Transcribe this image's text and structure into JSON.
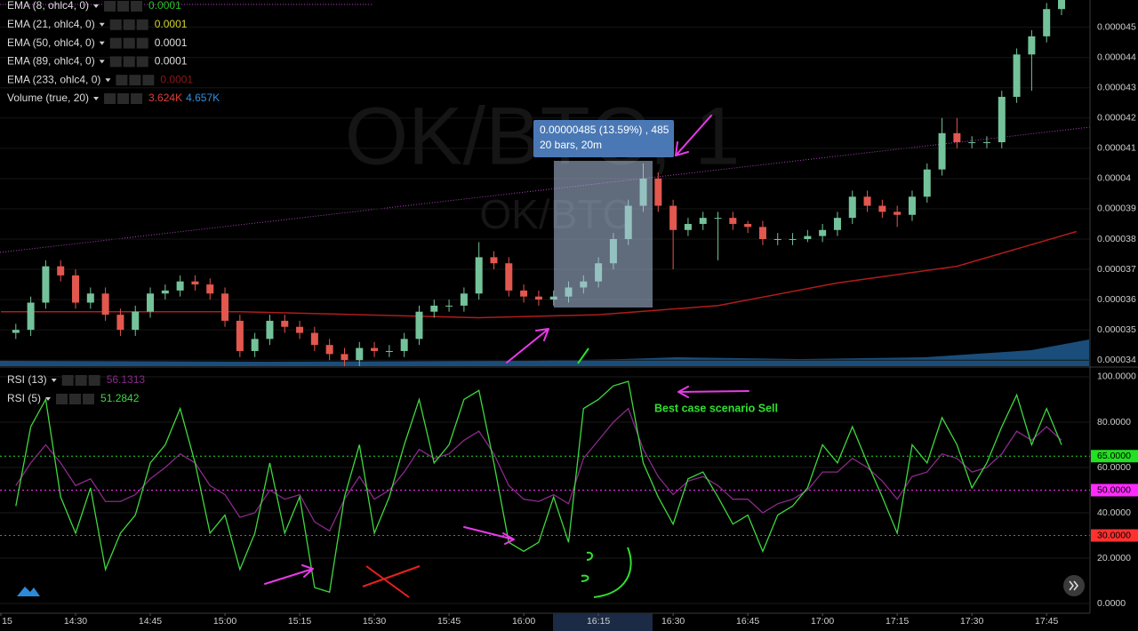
{
  "chart_data": [
    {
      "type": "candlestick",
      "watermark": "OK/BTC, 1",
      "watermark_sub": "OK/BTC",
      "measure_lines": [
        "0.00000485 (13.59%) , 485",
        "20 bars, 20m"
      ],
      "indicator_legend": [
        {
          "label": "EMA (8, ohlc4, 0)",
          "readouts": [
            {
              "text": "0.0001",
              "color": "#22c322"
            }
          ]
        },
        {
          "label": "EMA (21, ohlc4, 0)",
          "readouts": [
            {
              "text": "0.0001",
              "color": "#d6d62a"
            }
          ]
        },
        {
          "label": "EMA (50, ohlc4, 0)",
          "readouts": [
            {
              "text": "0.0001",
              "color": "#dddddd"
            }
          ]
        },
        {
          "label": "EMA (89, ohlc4, 0)",
          "readouts": [
            {
              "text": "0.0001",
              "color": "#dddddd"
            }
          ]
        },
        {
          "label": "EMA (233, ohlc4, 0)",
          "readouts": [
            {
              "text": "0.0001",
              "color": "#8a1a1a"
            }
          ]
        },
        {
          "label": "Volume (true, 20)",
          "readouts": [
            {
              "text": "3.624K",
              "color": "#e0403a"
            },
            {
              "text": "4.657K",
              "color": "#2f8fe0"
            }
          ]
        }
      ],
      "xlim": [
        0,
        218
      ],
      "ylim": [
        3.38e-05,
        4.59e-05
      ],
      "yticks": [
        3.4e-05,
        3.5e-05,
        3.6e-05,
        3.7e-05,
        3.8e-05,
        3.9e-05,
        4e-05,
        4.1e-05,
        4.2e-05,
        4.3e-05,
        4.4e-05,
        4.5e-05
      ],
      "grid": true,
      "up_color": "#74c29a",
      "down_color": "#e2574e",
      "x": [
        3,
        6,
        9,
        12,
        15,
        18,
        21,
        24,
        27,
        30,
        33,
        36,
        39,
        42,
        45,
        48,
        51,
        54,
        57,
        60,
        63,
        66,
        69,
        72,
        75,
        78,
        81,
        84,
        87,
        90,
        93,
        96,
        99,
        102,
        105,
        108,
        111,
        114,
        117,
        120,
        123,
        126,
        129,
        132,
        135,
        138,
        141,
        144,
        147,
        150,
        153,
        156,
        159,
        162,
        165,
        168,
        171,
        174,
        177,
        180,
        183,
        186,
        189,
        192,
        195,
        198,
        201,
        204,
        207,
        210,
        213
      ],
      "open": [
        3.49e-05,
        3.5e-05,
        3.59e-05,
        3.71e-05,
        3.68e-05,
        3.59e-05,
        3.62e-05,
        3.55e-05,
        3.5e-05,
        3.56e-05,
        3.62e-05,
        3.63e-05,
        3.66e-05,
        3.65e-05,
        3.62e-05,
        3.53e-05,
        3.43e-05,
        3.47e-05,
        3.53e-05,
        3.51e-05,
        3.49e-05,
        3.45e-05,
        3.42e-05,
        3.4e-05,
        3.44e-05,
        3.43e-05,
        3.43e-05,
        3.47e-05,
        3.56e-05,
        3.58e-05,
        3.58e-05,
        3.62e-05,
        3.74e-05,
        3.72e-05,
        3.63e-05,
        3.61e-05,
        3.6e-05,
        3.61e-05,
        3.64e-05,
        3.66e-05,
        3.72e-05,
        3.8e-05,
        3.91e-05,
        4e-05,
        3.91e-05,
        3.83e-05,
        3.85e-05,
        3.87e-05,
        3.87e-05,
        3.85e-05,
        3.84e-05,
        3.8e-05,
        3.8e-05,
        3.8e-05,
        3.81e-05,
        3.83e-05,
        3.87e-05,
        3.94e-05,
        3.91e-05,
        3.89e-05,
        3.88e-05,
        3.94e-05,
        4.03e-05,
        4.15e-05,
        4.12e-05,
        4.12e-05,
        4.12e-05,
        4.27e-05,
        4.41e-05,
        4.47e-05,
        4.56e-05
      ],
      "high": [
        3.52e-05,
        3.61e-05,
        3.73e-05,
        3.73e-05,
        3.7e-05,
        3.64e-05,
        3.64e-05,
        3.57e-05,
        3.58e-05,
        3.64e-05,
        3.65e-05,
        3.68e-05,
        3.68e-05,
        3.67e-05,
        3.64e-05,
        3.55e-05,
        3.49e-05,
        3.55e-05,
        3.55e-05,
        3.53e-05,
        3.51e-05,
        3.47e-05,
        3.44e-05,
        3.46e-05,
        3.46e-05,
        3.45e-05,
        3.49e-05,
        3.58e-05,
        3.6e-05,
        3.6e-05,
        3.64e-05,
        3.79e-05,
        3.76e-05,
        3.74e-05,
        3.65e-05,
        3.63e-05,
        3.63e-05,
        3.66e-05,
        3.68e-05,
        3.74e-05,
        3.82e-05,
        3.93e-05,
        4.05e-05,
        4.02e-05,
        3.93e-05,
        3.87e-05,
        3.89e-05,
        3.89e-05,
        3.89e-05,
        3.86e-05,
        3.86e-05,
        3.82e-05,
        3.82e-05,
        3.83e-05,
        3.85e-05,
        3.89e-05,
        3.96e-05,
        3.96e-05,
        3.93e-05,
        3.91e-05,
        3.96e-05,
        4.05e-05,
        4.2e-05,
        4.2e-05,
        4.14e-05,
        4.14e-05,
        4.29e-05,
        4.43e-05,
        4.49e-05,
        4.58e-05,
        4.61e-05
      ],
      "low": [
        3.47e-05,
        3.48e-05,
        3.57e-05,
        3.66e-05,
        3.57e-05,
        3.57e-05,
        3.53e-05,
        3.48e-05,
        3.48e-05,
        3.54e-05,
        3.6e-05,
        3.61e-05,
        3.63e-05,
        3.6e-05,
        3.51e-05,
        3.41e-05,
        3.41e-05,
        3.45e-05,
        3.49e-05,
        3.47e-05,
        3.43e-05,
        3.4e-05,
        3.38e-05,
        3.38e-05,
        3.41e-05,
        3.41e-05,
        3.41e-05,
        3.45e-05,
        3.54e-05,
        3.56e-05,
        3.56e-05,
        3.6e-05,
        3.7e-05,
        3.61e-05,
        3.59e-05,
        3.58e-05,
        3.58e-05,
        3.59e-05,
        3.62e-05,
        3.64e-05,
        3.7e-05,
        3.78e-05,
        3.89e-05,
        3.89e-05,
        3.7e-05,
        3.81e-05,
        3.83e-05,
        3.73e-05,
        3.83e-05,
        3.82e-05,
        3.78e-05,
        3.78e-05,
        3.78e-05,
        3.79e-05,
        3.79e-05,
        3.81e-05,
        3.85e-05,
        3.89e-05,
        3.87e-05,
        3.84e-05,
        3.86e-05,
        3.92e-05,
        4.01e-05,
        4.1e-05,
        4.1e-05,
        4.1e-05,
        4.1e-05,
        4.25e-05,
        4.29e-05,
        4.45e-05,
        4.54e-05
      ],
      "close": [
        3.5e-05,
        3.59e-05,
        3.71e-05,
        3.68e-05,
        3.59e-05,
        3.62e-05,
        3.55e-05,
        3.5e-05,
        3.56e-05,
        3.62e-05,
        3.63e-05,
        3.66e-05,
        3.65e-05,
        3.62e-05,
        3.53e-05,
        3.43e-05,
        3.47e-05,
        3.53e-05,
        3.51e-05,
        3.49e-05,
        3.45e-05,
        3.42e-05,
        3.4e-05,
        3.44e-05,
        3.43e-05,
        3.43e-05,
        3.47e-05,
        3.56e-05,
        3.58e-05,
        3.58e-05,
        3.62e-05,
        3.74e-05,
        3.72e-05,
        3.63e-05,
        3.61e-05,
        3.6e-05,
        3.61e-05,
        3.64e-05,
        3.66e-05,
        3.72e-05,
        3.8e-05,
        3.91e-05,
        4e-05,
        3.91e-05,
        3.83e-05,
        3.85e-05,
        3.87e-05,
        3.87e-05,
        3.85e-05,
        3.84e-05,
        3.8e-05,
        3.8e-05,
        3.8e-05,
        3.81e-05,
        3.83e-05,
        3.87e-05,
        3.94e-05,
        3.91e-05,
        3.89e-05,
        3.88e-05,
        3.94e-05,
        4.03e-05,
        4.15e-05,
        4.12e-05,
        4.12e-05,
        4.12e-05,
        4.27e-05,
        4.41e-05,
        4.47e-05,
        4.56e-05,
        4.59e-05
      ],
      "ema": {
        "color": "#b01c1c",
        "x": [
          0,
          24,
          48,
          72,
          96,
          120,
          144,
          168,
          192,
          216
        ],
        "values": [
          3.56e-05,
          3.56e-05,
          3.56e-05,
          3.55e-05,
          3.54e-05,
          3.55e-05,
          3.58e-05,
          3.655e-05,
          3.71e-05,
          3.825e-05
        ]
      }
    },
    {
      "type": "line",
      "annotation": "Best case scenario Sell",
      "xlim": [
        0,
        218
      ],
      "xticks": [
        {
          "value": 0,
          "label": "15"
        },
        {
          "value": 15,
          "label": "14:30"
        },
        {
          "value": 30,
          "label": "14:45"
        },
        {
          "value": 45,
          "label": "15:00"
        },
        {
          "value": 60,
          "label": "15:15"
        },
        {
          "value": 75,
          "label": "15:30"
        },
        {
          "value": 90,
          "label": "15:45"
        },
        {
          "value": 105,
          "label": "16:00"
        },
        {
          "value": 120,
          "label": "16:15"
        },
        {
          "value": 135,
          "label": "16:30"
        },
        {
          "value": 150,
          "label": "16:45"
        },
        {
          "value": 165,
          "label": "17:00"
        },
        {
          "value": 180,
          "label": "17:15"
        },
        {
          "value": 195,
          "label": "17:30"
        },
        {
          "value": 210,
          "label": "17:45"
        }
      ],
      "ylim": [
        -4.3,
        104.3
      ],
      "yticks": [
        {
          "value": 0,
          "label": "0.0000"
        },
        {
          "value": 20,
          "label": "20.0000"
        },
        {
          "value": 40,
          "label": "40.0000"
        },
        {
          "value": 60,
          "label": "60.0000"
        },
        {
          "value": 80,
          "label": "80.0000"
        },
        {
          "value": 100,
          "label": "100.0000"
        }
      ],
      "levels": [
        {
          "value": 65,
          "label": "65.0000",
          "color": "#22e022"
        },
        {
          "value": 50,
          "label": "50.0000",
          "color": "#ff2bff"
        },
        {
          "value": 30,
          "label": "30.0000",
          "color": "#ff3030"
        }
      ],
      "x": [
        3,
        6,
        9,
        12,
        15,
        18,
        21,
        24,
        27,
        30,
        33,
        36,
        39,
        42,
        45,
        48,
        51,
        54,
        57,
        60,
        63,
        66,
        69,
        72,
        75,
        78,
        81,
        84,
        87,
        90,
        93,
        96,
        99,
        102,
        105,
        108,
        111,
        114,
        117,
        120,
        123,
        126,
        129,
        132,
        135,
        138,
        141,
        144,
        147,
        150,
        153,
        156,
        159,
        162,
        165,
        168,
        171,
        174,
        177,
        180,
        183,
        186,
        189,
        192,
        195,
        198,
        201,
        204,
        207,
        210,
        213
      ],
      "series": [
        {
          "name": "RSI (13)",
          "color": "#8a2a8a",
          "readout": 56.1313,
          "values": [
            52,
            62,
            70,
            62,
            52,
            55,
            45,
            45,
            48,
            55,
            60,
            66,
            62,
            52,
            48,
            38,
            40,
            50,
            46,
            48,
            36,
            32,
            46,
            56,
            46,
            50,
            58,
            68,
            64,
            66,
            72,
            76,
            66,
            52,
            46,
            45,
            48,
            44,
            64,
            72,
            80,
            86,
            68,
            56,
            48,
            54,
            56,
            52,
            46,
            46,
            40,
            44,
            46,
            50,
            58,
            58,
            64,
            60,
            54,
            46,
            56,
            58,
            66,
            64,
            58,
            60,
            66,
            76,
            72,
            78,
            72
          ]
        },
        {
          "name": "RSI (5)",
          "color": "#3fd83f",
          "readout": 51.2842,
          "values": [
            43,
            78,
            90,
            47,
            31,
            51,
            15,
            31,
            39,
            62,
            70,
            86,
            62,
            31,
            39,
            15,
            31,
            62,
            31,
            47,
            7,
            5,
            47,
            70,
            31,
            47,
            70,
            90,
            62,
            70,
            90,
            94,
            62,
            27,
            23,
            27,
            47,
            27,
            86,
            90,
            96,
            98,
            62,
            47,
            35,
            55,
            58,
            47,
            35,
            39,
            23,
            39,
            43,
            51,
            70,
            62,
            78,
            62,
            47,
            31,
            70,
            62,
            82,
            70,
            51,
            62,
            78,
            92,
            70,
            86,
            70
          ]
        }
      ]
    }
  ]
}
